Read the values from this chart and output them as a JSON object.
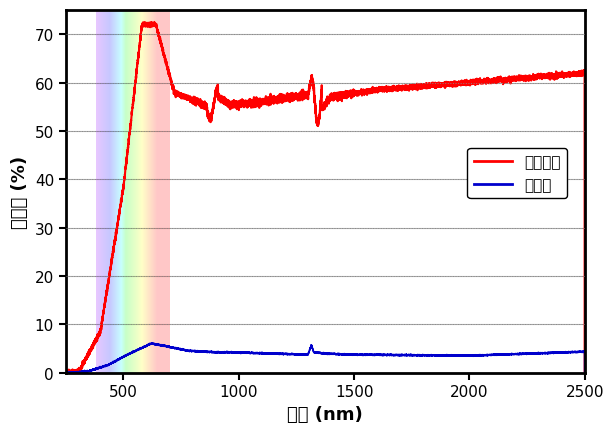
{
  "title": "",
  "xlabel": "波長 (nm)",
  "ylabel": "透過率 (%)",
  "xlim": [
    250,
    2500
  ],
  "ylim": [
    0,
    75
  ],
  "yticks": [
    0,
    10,
    20,
    30,
    40,
    50,
    60,
    70
  ],
  "xticks": [
    500,
    1000,
    1500,
    2000,
    2500
  ],
  "transparent_color": "#ff0000",
  "mirror_color": "#0000cc",
  "legend_transparent": "透明状態",
  "legend_mirror": "鏡状態",
  "vis_start": 380,
  "vis_end": 700,
  "background_color": "#ffffff",
  "grid_color": "#888888",
  "legend_fontsize": 11,
  "axis_label_fontsize": 13,
  "tick_fontsize": 11
}
